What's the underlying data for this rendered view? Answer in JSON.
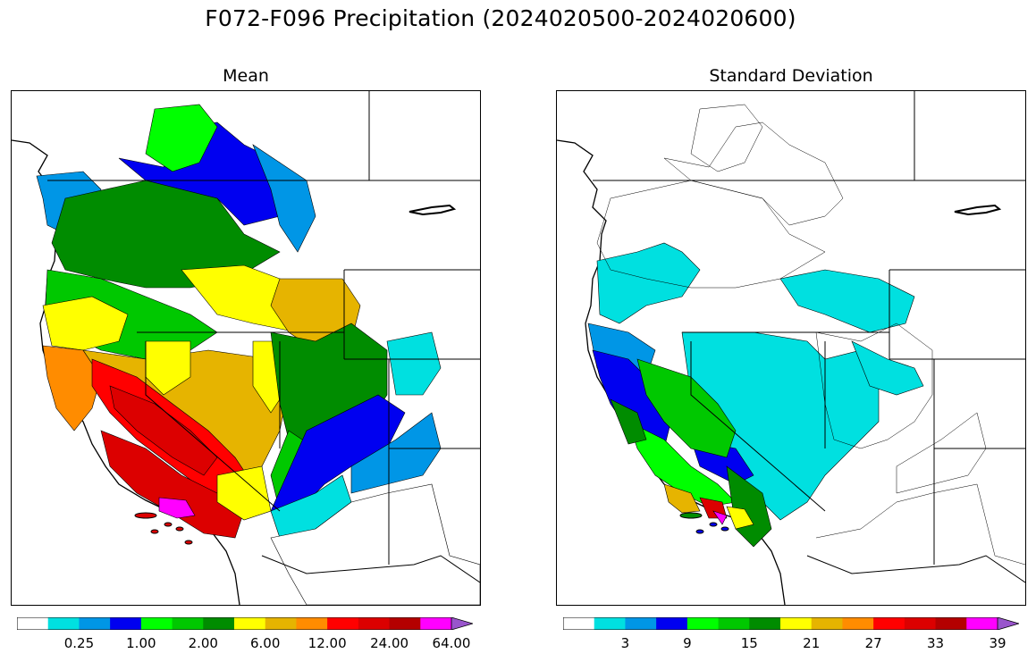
{
  "title": "F072-F096 Precipitation (2024020500-2024020600)",
  "panels": [
    {
      "id": "mean",
      "title": "Mean",
      "colorbar": {
        "colors": [
          "#ffffff",
          "#00e0e0",
          "#0096e6",
          "#0000f0",
          "#00ff00",
          "#00c800",
          "#008c00",
          "#ffff00",
          "#e6b400",
          "#ff8c00",
          "#ff0000",
          "#dc0000",
          "#b40000",
          "#ff00ff",
          "#9955cc"
        ],
        "tick_labels": [
          "0.25",
          "1.00",
          "2.00",
          "6.00",
          "12.00",
          "24.00",
          "64.00"
        ],
        "tick_after_bin": [
          1,
          3,
          5,
          7,
          9,
          11,
          13
        ],
        "extend": "max"
      }
    },
    {
      "id": "std",
      "title": "Standard Deviation",
      "colorbar": {
        "colors": [
          "#ffffff",
          "#00e0e0",
          "#0096e6",
          "#0000f0",
          "#00ff00",
          "#00c800",
          "#008c00",
          "#ffff00",
          "#e6b400",
          "#ff8c00",
          "#ff0000",
          "#dc0000",
          "#b40000",
          "#ff00ff",
          "#9955cc"
        ],
        "tick_labels": [
          "3",
          "9",
          "15",
          "21",
          "27",
          "33",
          "39"
        ],
        "tick_after_bin": [
          1,
          3,
          5,
          7,
          9,
          11,
          13
        ],
        "extend": "max"
      }
    }
  ]
}
